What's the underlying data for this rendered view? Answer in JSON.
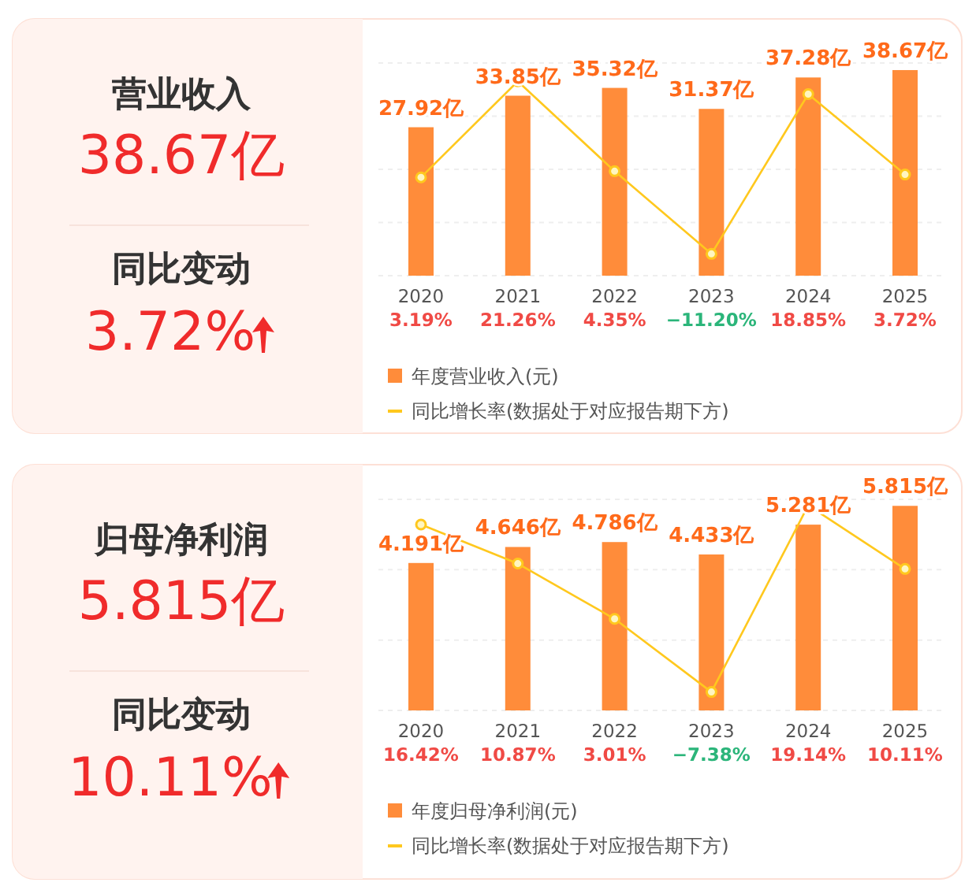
{
  "chart_data": [
    {
      "type": "other",
      "annotations": [
        "营业收入",
        "38.67亿",
        "同比变动",
        "3.72%"
      ]
    },
    {
      "type": "bar",
      "categories": [
        "2020",
        "2021",
        "2022",
        "2023",
        "2024",
        "2025"
      ],
      "ylim": [
        0,
        40
      ],
      "yticks": [
        {
          "value": 0,
          "label": null
        },
        {
          "value": 10,
          "label": null
        },
        {
          "value": 20,
          "label": null
        },
        {
          "value": 30,
          "label": null
        },
        {
          "value": 40,
          "label": null
        }
      ],
      "y2lim": [
        -15.3,
        24.7
      ],
      "grid": "y",
      "legend": "bottom",
      "marker": "circle",
      "tick_labels": "x",
      "series": [
        {
          "name": "年度营业收入(元)",
          "color": "#ff8c3a",
          "values": [
            27.92,
            33.85,
            35.32,
            31.37,
            37.28,
            38.67
          ],
          "value_labels": [
            "27.92亿",
            "33.85亿",
            "35.32亿",
            "31.37亿",
            "37.28亿",
            "38.67亿"
          ]
        },
        {
          "name": "同比增长率(数据处于对应报告期下方)",
          "type": "line",
          "axis": "y2",
          "color": "#ffc81e",
          "values": [
            3.19,
            21.26,
            4.35,
            -11.2,
            18.85,
            3.72
          ],
          "value_labels": [
            "3.19%",
            "21.26%",
            "4.35%",
            "−11.20%",
            "18.85%",
            "3.72%"
          ]
        }
      ]
    },
    {
      "type": "other",
      "annotations": [
        "归母净利润",
        "5.815亿",
        "同比变动",
        "10.11%"
      ]
    },
    {
      "type": "bar",
      "categories": [
        "2020",
        "2021",
        "2022",
        "2023",
        "2024",
        "2025"
      ],
      "ylim": [
        0,
        6
      ],
      "yticks": [
        {
          "value": 0,
          "label": null
        },
        {
          "value": 2,
          "label": null
        },
        {
          "value": 4,
          "label": null
        },
        {
          "value": 6,
          "label": null
        }
      ],
      "y2lim": [
        -10,
        20
      ],
      "grid": "y",
      "legend": "bottom",
      "marker": "circle",
      "tick_labels": "x",
      "series": [
        {
          "name": "年度归母净利润(元)",
          "color": "#ff8c3a",
          "values": [
            4.191,
            4.646,
            4.786,
            4.433,
            5.281,
            5.815
          ],
          "value_labels": [
            "4.191亿",
            "4.646亿",
            "4.786亿",
            "4.433亿",
            "5.281亿",
            "5.815亿"
          ]
        },
        {
          "name": "同比增长率(数据处于对应报告期下方)",
          "type": "line",
          "axis": "y2",
          "color": "#ffc81e",
          "values": [
            16.42,
            10.87,
            3.01,
            -7.38,
            19.14,
            10.11
          ],
          "value_labels": [
            "16.42%",
            "10.87%",
            "3.01%",
            "−7.38%",
            "19.14%",
            "10.11%"
          ]
        }
      ]
    }
  ]
}
